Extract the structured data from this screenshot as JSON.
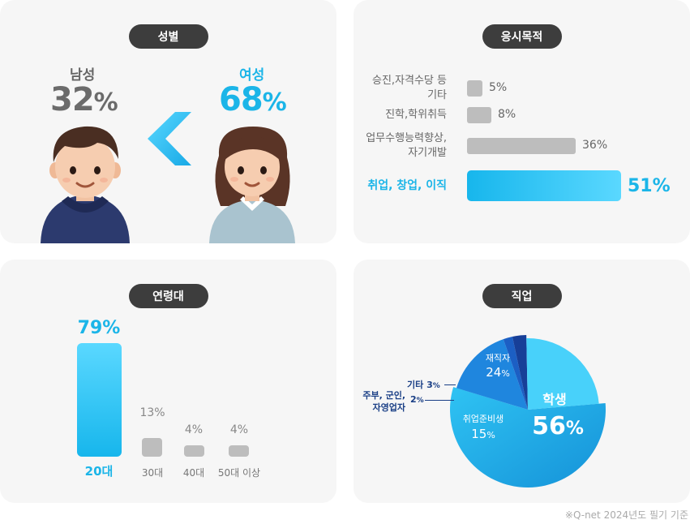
{
  "gender": {
    "title": "성별",
    "male": {
      "label": "남성",
      "value": "32",
      "unit": "%"
    },
    "female": {
      "label": "여성",
      "value": "68",
      "unit": "%"
    },
    "colors": {
      "male": "#6b6b6b",
      "female": "#1bb5e8"
    }
  },
  "purpose": {
    "title": "응시목적",
    "items": [
      {
        "label1": "승진,자격수당 등",
        "label2": "기타",
        "value": "5%"
      },
      {
        "label1": "진학,학위취득",
        "label2": "",
        "value": "8%"
      },
      {
        "label1": "업무수행능력향상,",
        "label2": "자기개발",
        "value": "36%"
      },
      {
        "label1": "취업, 창업, 이직",
        "label2": "",
        "value": "51%"
      }
    ]
  },
  "age": {
    "title": "연령대",
    "items": [
      {
        "label": "20대",
        "value": "79%"
      },
      {
        "label": "30대",
        "value": "13%"
      },
      {
        "label": "40대",
        "value": "4%"
      },
      {
        "label": "50대 이상",
        "value": "4%"
      }
    ]
  },
  "job": {
    "title": "직업",
    "student": {
      "label": "학생",
      "value": "56",
      "unit": "%"
    },
    "prep": {
      "label": "취업준비생",
      "value": "15",
      "unit": "%"
    },
    "employed": {
      "label": "재직자",
      "value": "24",
      "unit": "%"
    },
    "etc": {
      "label": "기타 3",
      "unit": "%"
    },
    "house1": "주부, 군인,",
    "house2": "자영업자",
    "house_value": "2",
    "house_unit": "%"
  },
  "footnote": "※Q-net 2024년도 필기 기준",
  "chart_data": [
    {
      "type": "bar",
      "title": "성별",
      "categories": [
        "남성",
        "여성"
      ],
      "values": [
        32,
        68
      ]
    },
    {
      "type": "bar",
      "title": "응시목적",
      "categories": [
        "승진,자격수당 등 기타",
        "진학,학위취득",
        "업무수행능력향상, 자기개발",
        "취업, 창업, 이직"
      ],
      "values": [
        5,
        8,
        36,
        51
      ]
    },
    {
      "type": "bar",
      "title": "연령대",
      "categories": [
        "20대",
        "30대",
        "40대",
        "50대 이상"
      ],
      "values": [
        79,
        13,
        4,
        4
      ]
    },
    {
      "type": "pie",
      "title": "직업",
      "categories": [
        "학생",
        "취업준비생",
        "주부, 군인, 자영업자",
        "기타",
        "재직자"
      ],
      "values": [
        56,
        15,
        2,
        3,
        24
      ]
    }
  ]
}
